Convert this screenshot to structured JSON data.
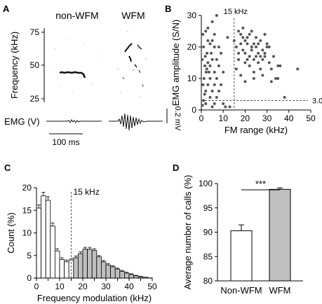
{
  "panels": {
    "A": {
      "letter": "A",
      "label_nonwfm": "non-WFM",
      "label_wfm": "WFM",
      "ylabel": "Frequency (kHz)",
      "yticks": [
        "75",
        "50",
        "25"
      ],
      "emg_label": "EMG (V)",
      "time_scale": "100 ms",
      "volt_scale": "0.2 mV"
    },
    "B": {
      "letter": "B"
    },
    "C": {
      "letter": "C"
    },
    "D": {
      "letter": "D"
    }
  },
  "chart_data": [
    {
      "panel": "B",
      "type": "scatter",
      "xlabel": "FM range (kHz)",
      "ylabel": "EMG amplitude (S/N)",
      "xlim": [
        0,
        50
      ],
      "ylim": [
        0,
        30
      ],
      "xticks": [
        0,
        10,
        20,
        30,
        40,
        50
      ],
      "yticks": [
        0,
        10,
        20,
        30
      ],
      "ref_x": 15,
      "ref_x_label": "15 kHz",
      "ref_y": 3.0,
      "ref_y_label": "3.0",
      "points": [
        [
          0.5,
          1.5
        ],
        [
          1,
          3
        ],
        [
          1.5,
          5
        ],
        [
          2,
          2
        ],
        [
          0.8,
          8
        ],
        [
          1.2,
          10
        ],
        [
          2.2,
          12
        ],
        [
          1.6,
          14
        ],
        [
          0.4,
          16
        ],
        [
          2.6,
          18
        ],
        [
          1,
          20
        ],
        [
          3,
          22
        ],
        [
          0.7,
          24
        ],
        [
          2,
          6
        ],
        [
          3,
          8
        ],
        [
          4,
          10
        ],
        [
          3.5,
          12
        ],
        [
          4,
          14
        ],
        [
          5,
          16
        ],
        [
          4.5,
          18
        ],
        [
          6,
          20
        ],
        [
          5,
          22
        ],
        [
          6,
          24
        ],
        [
          3,
          26
        ],
        [
          5,
          28
        ],
        [
          7,
          30
        ],
        [
          2,
          25
        ],
        [
          4,
          4
        ],
        [
          5,
          6
        ],
        [
          6,
          8
        ],
        [
          7,
          10
        ],
        [
          6,
          12
        ],
        [
          8,
          14
        ],
        [
          7,
          16
        ],
        [
          9,
          18
        ],
        [
          8,
          20
        ],
        [
          5,
          1
        ],
        [
          6,
          2
        ],
        [
          7,
          4
        ],
        [
          8,
          6
        ],
        [
          9,
          8
        ],
        [
          10,
          2
        ],
        [
          10,
          12
        ],
        [
          11,
          1
        ],
        [
          3,
          15
        ],
        [
          4,
          21
        ],
        [
          2.5,
          13
        ],
        [
          1.8,
          17
        ],
        [
          13,
          1
        ],
        [
          12,
          23
        ],
        [
          15,
          22
        ],
        [
          16,
          20
        ],
        [
          17,
          18
        ],
        [
          18,
          24
        ],
        [
          19,
          26
        ],
        [
          20,
          22
        ],
        [
          21,
          16
        ],
        [
          22,
          14
        ],
        [
          23,
          25
        ],
        [
          24,
          12
        ],
        [
          25,
          20
        ],
        [
          26,
          18
        ],
        [
          27,
          22
        ],
        [
          28,
          16
        ],
        [
          29,
          24
        ],
        [
          30,
          20
        ],
        [
          17,
          25
        ],
        [
          18,
          21
        ],
        [
          19,
          19
        ],
        [
          20,
          15
        ],
        [
          21,
          23
        ],
        [
          22,
          17
        ],
        [
          23,
          19
        ],
        [
          24,
          21
        ],
        [
          25,
          23
        ],
        [
          26,
          15
        ],
        [
          27,
          13
        ],
        [
          28,
          19
        ],
        [
          29,
          17
        ],
        [
          30,
          21
        ],
        [
          31,
          15
        ],
        [
          32,
          13
        ],
        [
          33,
          17
        ],
        [
          34,
          10
        ],
        [
          35,
          14
        ],
        [
          16,
          13
        ],
        [
          18,
          11
        ],
        [
          20,
          9
        ],
        [
          24,
          10
        ],
        [
          28,
          11
        ],
        [
          32,
          9
        ],
        [
          38,
          4
        ],
        [
          44,
          13
        ],
        [
          19,
          23
        ],
        [
          21,
          21
        ],
        [
          23,
          20
        ],
        [
          25,
          17
        ],
        [
          17,
          16
        ],
        [
          22,
          24
        ],
        [
          26,
          21
        ],
        [
          29,
          18
        ],
        [
          31,
          20
        ],
        [
          27,
          17
        ],
        [
          24,
          16
        ],
        [
          20,
          18
        ],
        [
          35,
          10
        ],
        [
          36,
          14
        ]
      ]
    },
    {
      "panel": "C",
      "type": "bar",
      "xlabel": "Frequency modulation (kHz)",
      "ylabel": "Count (%)",
      "xlim": [
        0,
        50
      ],
      "ylim": [
        0,
        20
      ],
      "xticks": [
        0,
        5,
        10,
        15,
        20,
        25,
        30,
        35,
        40,
        45,
        50
      ],
      "yticks": [
        0,
        5,
        10,
        15,
        20
      ],
      "ref_x": 15,
      "ref_x_label": "15 kHz",
      "bin_width": 2,
      "split_at": 15,
      "bins_start": [
        0,
        2,
        4,
        6,
        8,
        10,
        12,
        14,
        16,
        18,
        20,
        22,
        24,
        26,
        28,
        30,
        32,
        34,
        36,
        38,
        40,
        42,
        44,
        46,
        48
      ],
      "values": [
        15.5,
        18.2,
        17.2,
        11.5,
        6.0,
        4.1,
        3.6,
        4.0,
        4.5,
        5.4,
        6.4,
        6.4,
        6.1,
        4.7,
        3.6,
        2.9,
        2.5,
        2.0,
        1.5,
        1.1,
        0.8,
        0.5,
        0.3,
        0.2,
        0.05
      ],
      "errors": [
        0.7,
        0.8,
        0.8,
        0.7,
        0.5,
        0.4,
        0.4,
        0.3,
        0.4,
        0.4,
        0.4,
        0.4,
        0.4,
        0.3,
        0.3,
        0.3,
        0.2,
        0.2,
        0.2,
        0.2,
        0.15,
        0.1,
        0.1,
        0.05,
        0.05
      ]
    },
    {
      "panel": "D",
      "type": "bar",
      "ylabel": "Average number of calls (%)",
      "categories": [
        "Non-WFM",
        "WFM"
      ],
      "values": [
        90.3,
        98.8
      ],
      "errors": [
        1.2,
        0.3
      ],
      "ylim": [
        80,
        100
      ],
      "yticks": [
        80,
        85,
        90,
        95,
        100
      ],
      "significance": "***",
      "colors": [
        "#ffffff",
        "#bfbfbf"
      ]
    }
  ]
}
